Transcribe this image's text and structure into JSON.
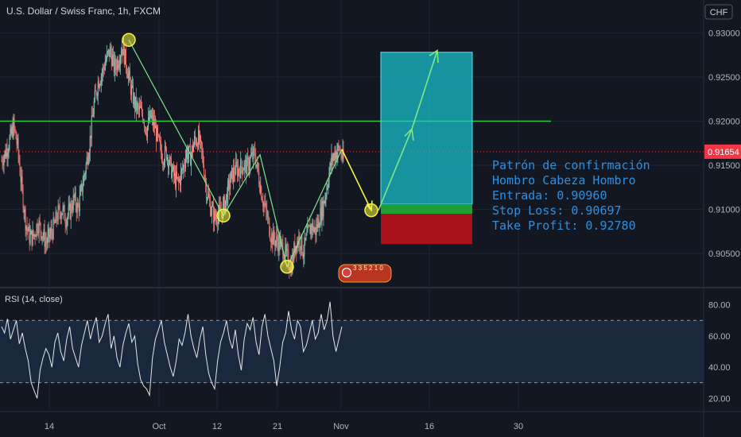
{
  "header": {
    "symbol": "U.S. Dollar / Swiss Franc, 1h, FXCM",
    "currency": "CHF"
  },
  "price_axis": {
    "ticks": [
      "0.93000",
      "0.92500",
      "0.92000",
      "0.91500",
      "0.91000",
      "0.90500"
    ],
    "last_price": "0.91654"
  },
  "rsi_panel": {
    "title": "RSI (14, close)",
    "ticks": [
      "80.00",
      "60.00",
      "40.00",
      "20.00"
    ]
  },
  "time_axis": {
    "ticks": [
      "14",
      "Oct",
      "12",
      "21",
      "Nov",
      "16",
      "30"
    ]
  },
  "annotation": {
    "line1": "Patrón de confirmación",
    "line2": "Hombro Cabeza Hombro",
    "line3": "Entrada: 0.90960",
    "line4": "Stop Loss: 0.90697",
    "line5": "Take Profit: 0.92780"
  },
  "events_badge": {
    "text": "3 3 5 2 1 0"
  },
  "colors": {
    "background": "#131722",
    "grid": "#1f2433",
    "text": "#b2b5be",
    "annotation": "#2f8fdf",
    "neckline": "#2ecc40",
    "pattern_line": "#7ee787",
    "marker": "#f5f540",
    "target_zone": "#1ac8d4",
    "entry_zone": "#1fa035",
    "stop_zone": "#a8101a",
    "last_price": "#f23645",
    "rsi_line": "#e6e6e6",
    "rsi_band": "#1c2b43"
  },
  "chart_data": [
    {
      "type": "candlestick",
      "title": "U.S. Dollar / Swiss Franc, 1h, FXCM",
      "x_ticks": [
        "14",
        "Oct",
        "12",
        "21",
        "Nov",
        "16",
        "30"
      ],
      "y_ticks": [
        0.93,
        0.925,
        0.92,
        0.915,
        0.91,
        0.905
      ],
      "ylim": [
        0.9015,
        0.9312
      ],
      "last_price": 0.91654,
      "neckline": 0.92,
      "pattern_points": [
        {
          "label": "left-shoulder-peak",
          "x": "Oct",
          "y": 0.9292
        },
        {
          "label": "trough-1",
          "x": "12",
          "y": 0.9093
        },
        {
          "label": "rebound",
          "x": "12",
          "y": 0.9162
        },
        {
          "label": "head-trough",
          "x": "21",
          "y": 0.9035
        },
        {
          "label": "right-high",
          "x": "Nov",
          "y": 0.9168
        },
        {
          "label": "entry",
          "x": "Nov",
          "y": 0.9099
        }
      ],
      "entry": 0.9096,
      "stop_loss": 0.90697,
      "take_profit": 0.9278,
      "close_path": [
        0.9155,
        0.9165,
        0.9178,
        0.9195,
        0.917,
        0.9125,
        0.9085,
        0.9068,
        0.907,
        0.9085,
        0.9075,
        0.9062,
        0.907,
        0.908,
        0.9095,
        0.91,
        0.909,
        0.9098,
        0.9112,
        0.91,
        0.9125,
        0.915,
        0.918,
        0.922,
        0.9245,
        0.9255,
        0.927,
        0.928,
        0.926,
        0.927,
        0.9285,
        0.9265,
        0.924,
        0.922,
        0.9212,
        0.921,
        0.919,
        0.9205,
        0.9195,
        0.9175,
        0.916,
        0.9165,
        0.9148,
        0.9135,
        0.913,
        0.9145,
        0.9165,
        0.916,
        0.9178,
        0.918,
        0.9158,
        0.912,
        0.9102,
        0.909,
        0.9095,
        0.91,
        0.9115,
        0.9135,
        0.9145,
        0.9145,
        0.915,
        0.9148,
        0.9158,
        0.9162,
        0.9135,
        0.911,
        0.9092,
        0.907,
        0.9065,
        0.9062,
        0.9055,
        0.9045,
        0.9035,
        0.906,
        0.9068,
        0.9052,
        0.907,
        0.9082,
        0.9075,
        0.909,
        0.9105,
        0.913,
        0.9155,
        0.9165,
        0.9168,
        0.9155
      ]
    },
    {
      "type": "line",
      "title": "RSI (14, close)",
      "y_ticks": [
        80,
        60,
        40,
        20
      ],
      "ylim": [
        13,
        88
      ],
      "bands": [
        30,
        70
      ],
      "values": [
        66,
        62,
        71,
        58,
        64,
        70,
        55,
        62,
        52,
        44,
        30,
        25,
        20,
        38,
        46,
        52,
        48,
        40,
        56,
        62,
        50,
        44,
        58,
        66,
        52,
        46,
        40,
        54,
        62,
        70,
        58,
        66,
        72,
        56,
        60,
        68,
        74,
        52,
        60,
        46,
        40,
        54,
        62,
        68,
        56,
        60,
        42,
        32,
        28,
        26,
        22,
        46,
        58,
        64,
        70,
        56,
        48,
        40,
        34,
        44,
        58,
        54,
        62,
        74,
        60,
        52,
        46,
        58,
        66,
        48,
        36,
        30,
        26,
        44,
        56,
        62,
        70,
        58,
        52,
        64,
        48,
        38,
        58,
        68,
        64,
        72,
        56,
        48,
        66,
        74,
        60,
        52,
        44,
        28,
        40,
        56,
        62,
        76,
        64,
        58,
        70,
        66,
        50,
        54,
        62,
        70,
        58,
        62,
        74,
        64,
        70,
        82,
        60,
        50,
        58,
        66
      ]
    }
  ]
}
